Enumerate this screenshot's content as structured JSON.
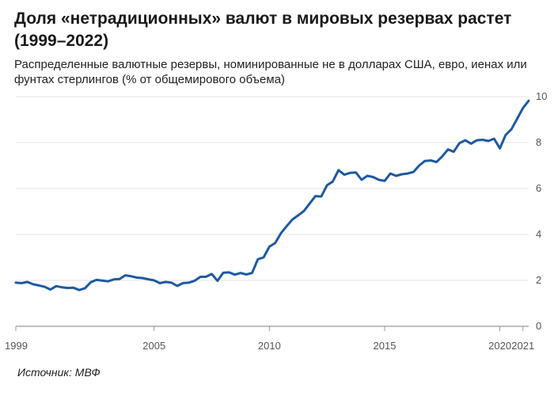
{
  "title": "Доля «нетрадиционных» валют в мировых резервах растет (1999–2022)",
  "subtitle": "Распределенные валютные резервы, номинированные не в долларах США, евро, иенах или фунтах стерлингов (% от общемирового объема)",
  "source": "Источник: МВФ",
  "colors": {
    "line": "#1f5aa0",
    "grid": "#e3e3e3",
    "axis": "#999999"
  },
  "chart_data": {
    "type": "line",
    "title": "Доля «нетрадиционных» валют в мировых резервах растет (1999–2022)",
    "subtitle": "Распределенные валютные резервы, номинированные не в долларах США, евро, иенах или фунтах стерлингов (% от общемирового объема)",
    "xlabel": "",
    "ylabel": "",
    "xlim": [
      1999,
      2021.25
    ],
    "ylim": [
      0,
      10
    ],
    "x_ticks": [
      {
        "value": 1999,
        "label": "1999"
      },
      {
        "value": 2005,
        "label": "2005"
      },
      {
        "value": 2010,
        "label": "2010"
      },
      {
        "value": 2015,
        "label": "2015"
      },
      {
        "value": 2020,
        "label": "2020"
      },
      {
        "value": 2021,
        "label": "2021"
      }
    ],
    "y_ticks": [
      0,
      2,
      4,
      6,
      8,
      10
    ],
    "y_axis_side": "right",
    "grid": "horizontal",
    "series": [
      {
        "x": [
          1999.0,
          1999.25,
          1999.5,
          1999.75,
          2000.0,
          2000.25,
          2000.5,
          2000.75,
          2001.0,
          2001.25,
          2001.5,
          2001.75,
          2002.0,
          2002.25,
          2002.5,
          2002.75,
          2003.0,
          2003.25,
          2003.5,
          2003.75,
          2004.0,
          2004.25,
          2004.5,
          2004.75,
          2005.0,
          2005.25,
          2005.5,
          2005.75,
          2006.0,
          2006.25,
          2006.5,
          2006.75,
          2007.0,
          2007.25,
          2007.5,
          2007.75,
          2008.0,
          2008.25,
          2008.5,
          2008.75,
          2009.0,
          2009.25,
          2009.5,
          2009.75,
          2010.0,
          2010.25,
          2010.5,
          2010.75,
          2011.0,
          2011.25,
          2011.5,
          2011.75,
          2012.0,
          2012.25,
          2012.5,
          2012.75,
          2013.0,
          2013.25,
          2013.5,
          2013.75,
          2014.0,
          2014.25,
          2014.5,
          2014.75,
          2015.0,
          2015.25,
          2015.5,
          2015.75,
          2016.0,
          2016.25,
          2016.5,
          2016.75,
          2017.0,
          2017.25,
          2017.5,
          2017.75,
          2018.0,
          2018.25,
          2018.5,
          2018.75,
          2019.0,
          2019.25,
          2019.5,
          2019.75,
          2020.0,
          2020.25,
          2020.5,
          2020.75,
          2021.0,
          2021.25
        ],
        "values": [
          1.9,
          1.88,
          1.93,
          1.83,
          1.78,
          1.72,
          1.6,
          1.75,
          1.7,
          1.67,
          1.68,
          1.58,
          1.66,
          1.92,
          2.02,
          1.99,
          1.96,
          2.04,
          2.06,
          2.22,
          2.18,
          2.12,
          2.1,
          2.05,
          2.0,
          1.88,
          1.93,
          1.9,
          1.76,
          1.88,
          1.9,
          1.98,
          2.15,
          2.16,
          2.28,
          1.98,
          2.33,
          2.35,
          2.25,
          2.32,
          2.26,
          2.32,
          2.92,
          3.0,
          3.47,
          3.62,
          4.05,
          4.36,
          4.65,
          4.83,
          5.02,
          5.35,
          5.67,
          5.65,
          6.14,
          6.3,
          6.8,
          6.6,
          6.68,
          6.7,
          6.38,
          6.55,
          6.5,
          6.38,
          6.33,
          6.65,
          6.55,
          6.62,
          6.65,
          6.72,
          7.0,
          7.2,
          7.22,
          7.15,
          7.4,
          7.7,
          7.6,
          7.98,
          8.1,
          7.95,
          8.1,
          8.12,
          8.07,
          8.17,
          7.75,
          8.33,
          8.58,
          9.03,
          9.5,
          9.82
        ]
      }
    ]
  }
}
